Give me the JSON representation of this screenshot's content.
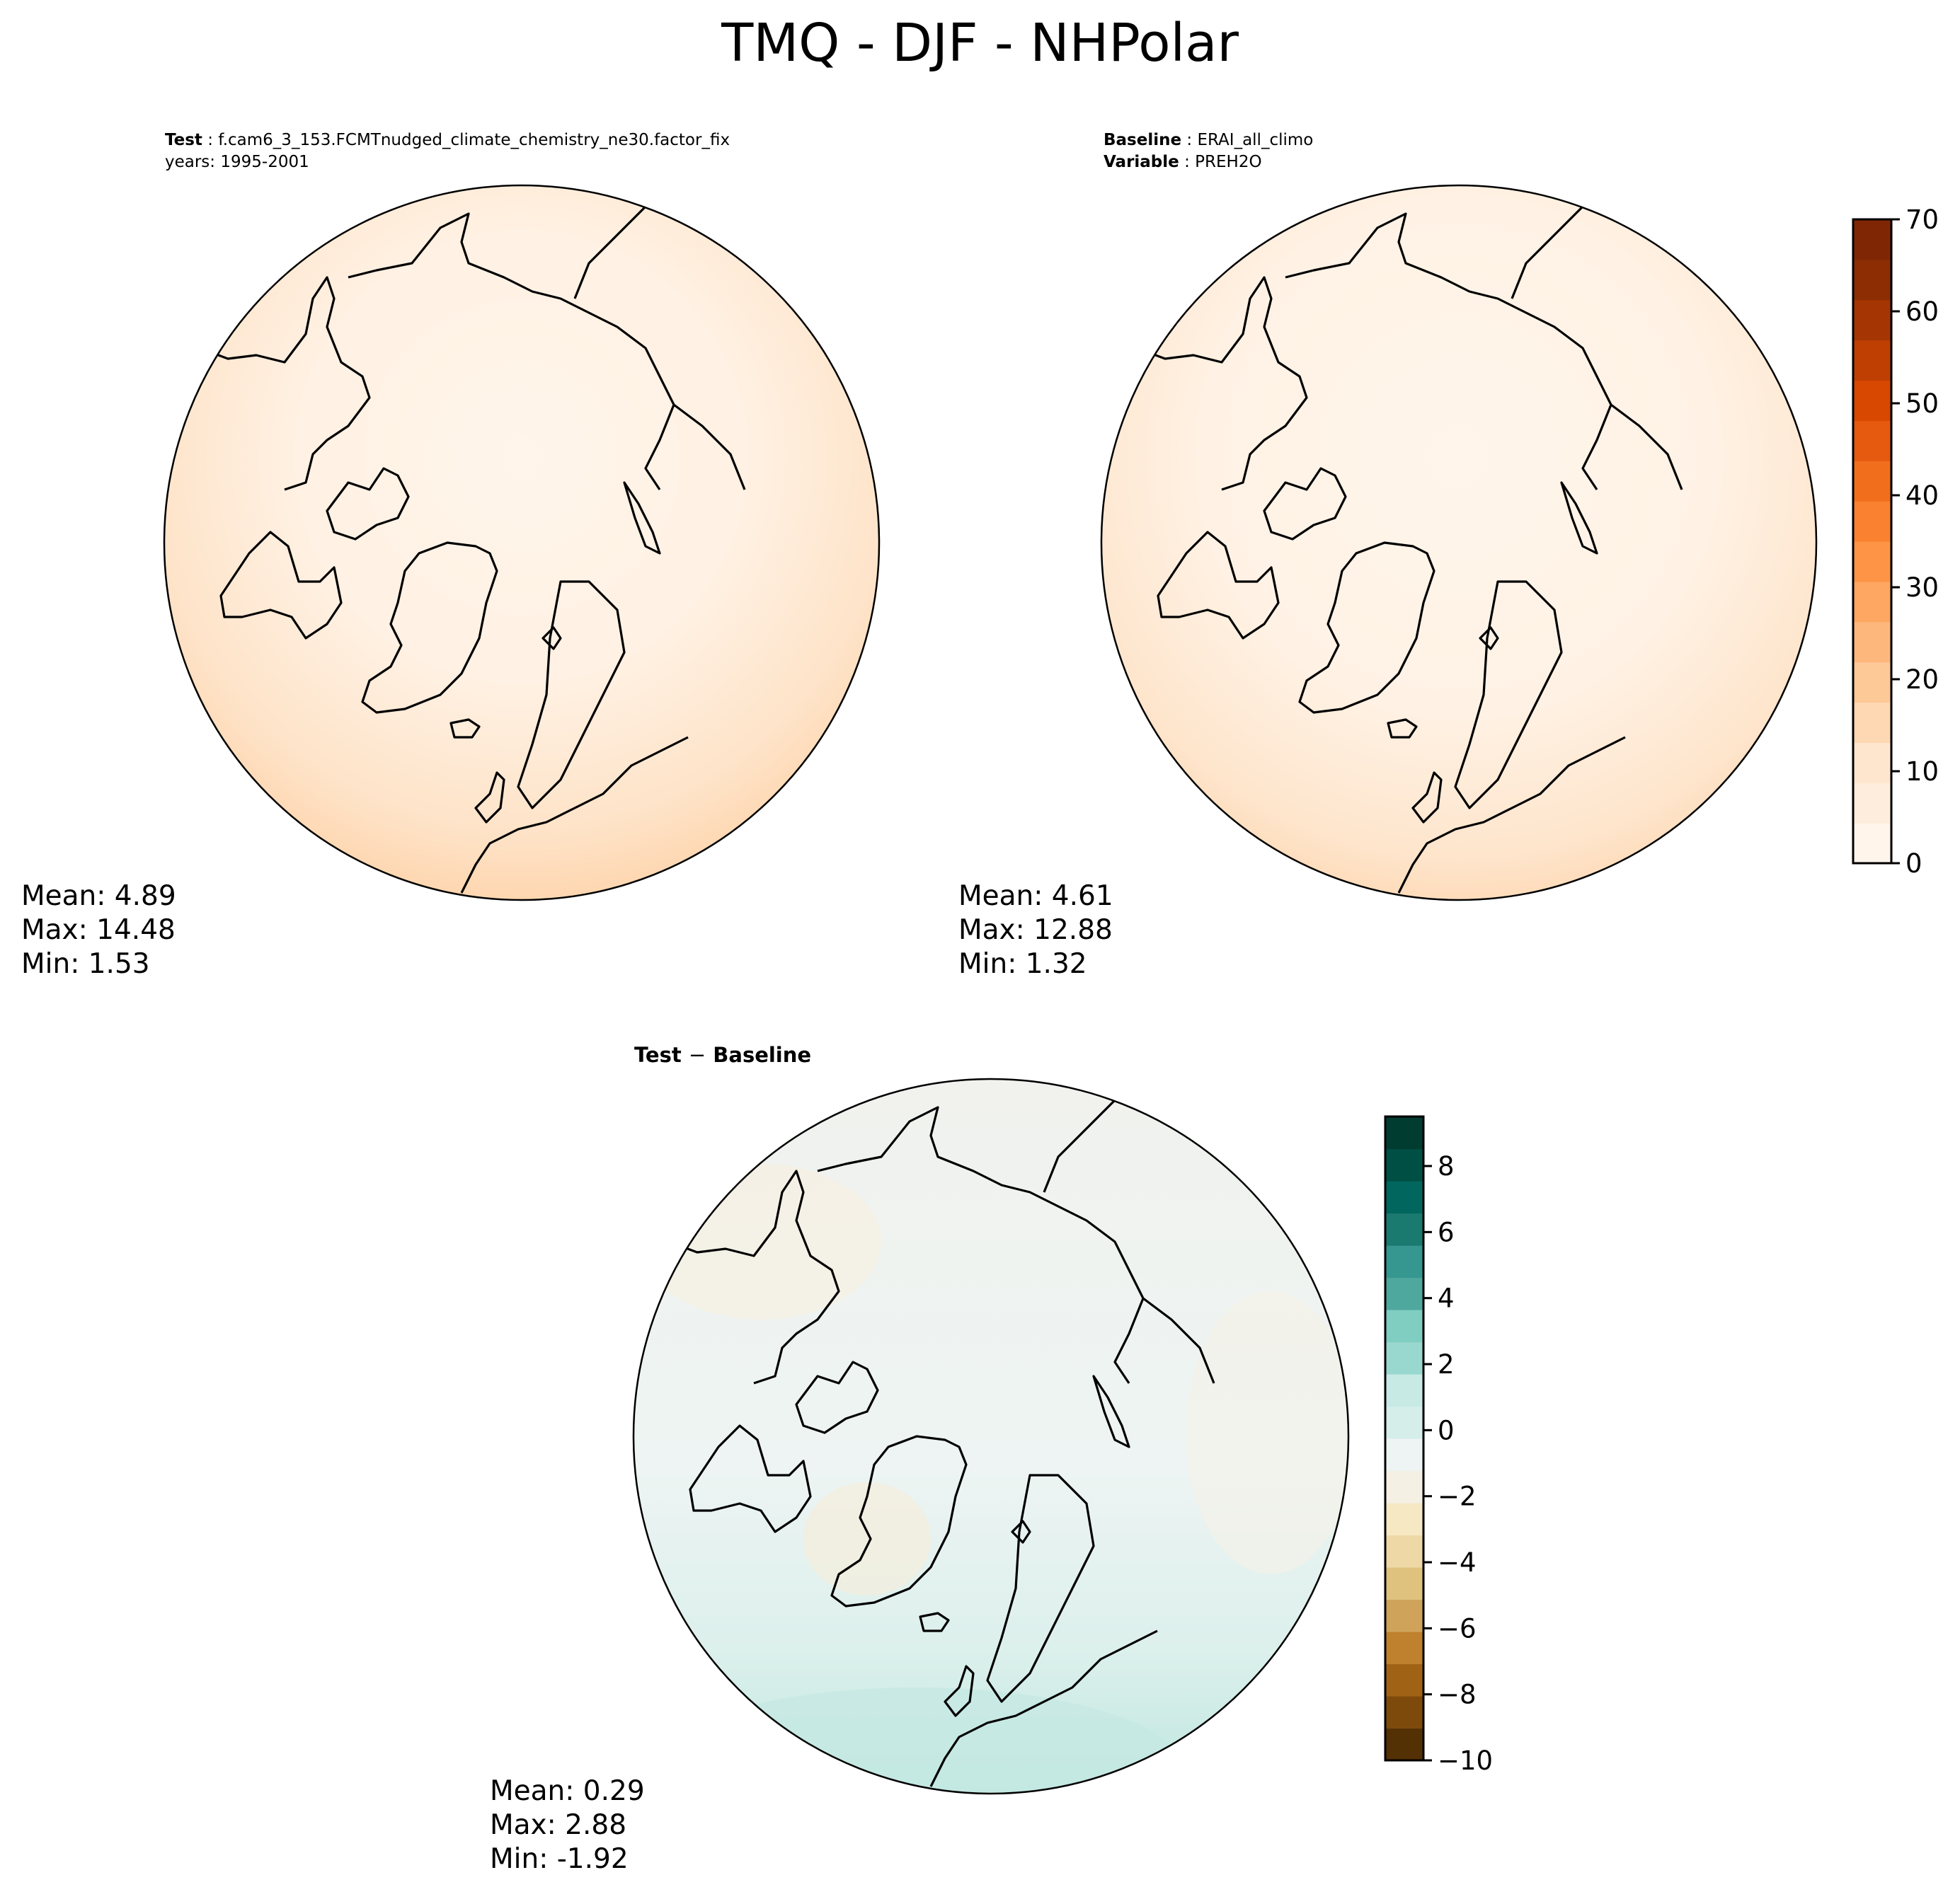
{
  "figure": {
    "title": "TMQ - DJF - NHPolar"
  },
  "test_panel": {
    "label": "Test",
    "case": "f.cam6_3_153.FCMTnudged_climate_chemistry_ne30.factor_fix",
    "years": "years: 1995-2001",
    "stats": {
      "mean": "Mean:  4.89",
      "max": "Max: 14.48",
      "min": "Min:  1.53"
    }
  },
  "baseline_panel": {
    "label": "Baseline",
    "case": "ERAI_all_climo",
    "variable_label": "Variable",
    "variable": "PREH2O",
    "stats": {
      "mean": "Mean:  4.61",
      "max": "Max: 12.88",
      "min": "Min:  1.32"
    }
  },
  "diff_panel": {
    "title_test": "Test",
    "title_sep": "−",
    "title_base": "Baseline",
    "stats": {
      "mean": "Mean:  0.29",
      "max": "Max:  2.88",
      "min": "Min: -1.92"
    }
  },
  "colorbar_main": {
    "ticks": [
      "0",
      "10",
      "20",
      "30",
      "40",
      "50",
      "60",
      "70"
    ],
    "range": [
      0,
      70
    ],
    "colors": [
      "#fff5eb",
      "#feeddc",
      "#fee6ce",
      "#fdd8b2",
      "#fdc997",
      "#fdb77c",
      "#fda762",
      "#fd9446",
      "#f9812f",
      "#f16e1d",
      "#e55a0f",
      "#d84801",
      "#bf3f02",
      "#a53603",
      "#8c2d04",
      "#7f2704"
    ]
  },
  "colorbar_diff": {
    "ticks": [
      "8",
      "6",
      "4",
      "2",
      "0",
      "−2",
      "−4",
      "−6",
      "−8",
      "−10"
    ],
    "range": [
      -10,
      9.5
    ],
    "colors": [
      "#543005",
      "#7e4a0c",
      "#a06214",
      "#bf812d",
      "#cfa45a",
      "#dfc27d",
      "#eed8a6",
      "#f6e8c3",
      "#f5f0e4",
      "#eef4f3",
      "#d6eeea",
      "#c7eae5",
      "#99d8ce",
      "#80cdc1",
      "#4fa89e",
      "#35978f",
      "#1b7a70",
      "#01665e",
      "#004f44",
      "#003c30"
    ]
  },
  "map_colors": {
    "main_low": "#fff3e6",
    "main_mid": "#fee4cb",
    "main_high": "#fdcfa2",
    "diff_base": "#edf3f3",
    "diff_pos": "#cfeae4",
    "diff_neg": "#f6eee1"
  }
}
